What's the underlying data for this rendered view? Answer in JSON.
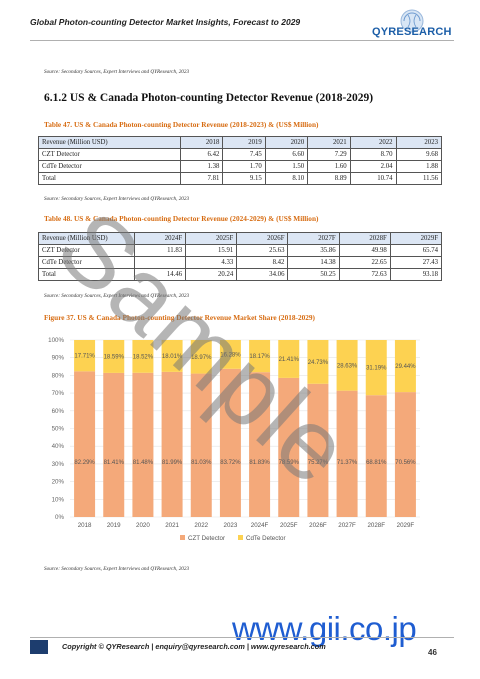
{
  "header": {
    "title": "Global Photon-counting Detector Market Insights, Forecast to 2029",
    "logo_text": "QYRESEARCH"
  },
  "sources": {
    "top": "Source: Secondary Sources, Expert Interviews and QYResearch, 2023",
    "table1": "Source: Secondary Sources, Expert Interviews and QYResearch, 2023",
    "table2": "Source: Secondary Sources, Expert Interviews and QYResearch, 2023",
    "figure": "Source: Secondary Sources, Expert Interviews and QYResearch, 2023"
  },
  "section_heading": "6.1.2  US & Canada Photon-counting Detector Revenue (2018-2029)",
  "table1": {
    "caption": "Table 47.  US & Canada Photon-counting Detector Revenue (2018-2023) & (US$ Million)",
    "header": [
      "Revenue (Million USD)",
      "2018",
      "2019",
      "2020",
      "2021",
      "2022",
      "2023"
    ],
    "rows": [
      [
        "CZT Detector",
        "6.42",
        "7.45",
        "6.60",
        "7.29",
        "8.70",
        "9.68"
      ],
      [
        "CdTe Detector",
        "1.38",
        "1.70",
        "1.50",
        "1.60",
        "2.04",
        "1.88"
      ],
      [
        "Total",
        "7.81",
        "9.15",
        "8.10",
        "8.89",
        "10.74",
        "11.56"
      ]
    ]
  },
  "table2": {
    "caption": "Table 48.  US & Canada Photon-counting Detector Revenue (2024-2029) & (US$ Million)",
    "header": [
      "Revenue (Million USD)",
      "2024F",
      "2025F",
      "2026F",
      "2027F",
      "2028F",
      "2029F"
    ],
    "rows": [
      [
        "CZT Detector",
        "11.83",
        "15.91",
        "25.63",
        "35.86",
        "49.98",
        "65.74"
      ],
      [
        "CdTe Detector",
        "",
        "4.33",
        "8.42",
        "14.38",
        "22.65",
        "27.43"
      ],
      [
        "Total",
        "14.46",
        "20.24",
        "34.06",
        "50.25",
        "72.63",
        "93.18"
      ]
    ]
  },
  "figure_caption": "Figure 37.  US & Canada Photon-counting Detector Revenue Market Share (2018-2029)",
  "chart_data": {
    "type": "bar",
    "stacked": true,
    "categories": [
      "2018",
      "2019",
      "2020",
      "2021",
      "2022",
      "2023",
      "2024F",
      "2025F",
      "2026F",
      "2027F",
      "2028F",
      "2029F"
    ],
    "series": [
      {
        "name": "CZT Detector",
        "color": "#f4a97a",
        "values": [
          82.29,
          81.41,
          81.48,
          81.99,
          81.03,
          83.72,
          81.83,
          78.59,
          75.27,
          71.37,
          68.81,
          70.56
        ],
        "labels": [
          "82.29%",
          "81.41%",
          "81.48%",
          "81.99%",
          "81.03%",
          "83.72%",
          "81.83%",
          "78.59%",
          "75.27%",
          "71.37%",
          "68.81%",
          "70.56%"
        ]
      },
      {
        "name": "CdTe Detector",
        "color": "#fdd251",
        "values": [
          17.71,
          18.59,
          18.52,
          18.01,
          18.97,
          16.28,
          18.17,
          21.41,
          24.73,
          28.63,
          31.19,
          29.44
        ],
        "labels": [
          "17.71%",
          "18.59%",
          "18.52%",
          "18.01%",
          "18.97%",
          "16.28%",
          "18.17%",
          "21.41%",
          "24.73%",
          "28.63%",
          "31.19%",
          "29.44%"
        ]
      }
    ],
    "y_ticks": [
      "0%",
      "10%",
      "20%",
      "30%",
      "40%",
      "50%",
      "60%",
      "70%",
      "80%",
      "90%",
      "100%"
    ],
    "ylim": [
      0,
      100
    ],
    "grid": true,
    "legend_position": "bottom"
  },
  "footer": {
    "text": "Copyright © QYResearch | enquiry@qyresearch.com | www.qyresearch.com",
    "page": "46"
  },
  "watermark": {
    "sample": "Sample",
    "site": "www.gii.co.jp"
  }
}
